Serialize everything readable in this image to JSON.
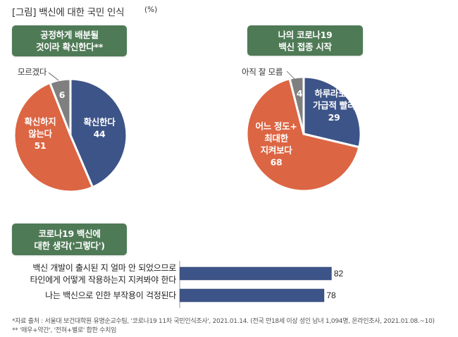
{
  "header": {
    "title": "[그림] 백신에 대한 국민 인식",
    "unit": "(%)"
  },
  "colors": {
    "blue": "#3d5488",
    "orange": "#dc6543",
    "gray": "#7f7f7f",
    "green": "#4f7a56"
  },
  "chart_data": [
    {
      "type": "pie",
      "title": [
        "공정하게 배분될",
        "것이라 확신한다**"
      ],
      "slices": [
        {
          "label": [
            "확신한다"
          ],
          "value": 44,
          "color": "#3d5488"
        },
        {
          "label": [
            "확신하지",
            "않는다"
          ],
          "value": 51,
          "color": "#dc6543"
        },
        {
          "label": [
            "모르겠다"
          ],
          "value": 6,
          "color": "#7f7f7f",
          "callout": true
        }
      ],
      "start": "top",
      "direction": "clockwise"
    },
    {
      "type": "pie",
      "title": [
        "나의 코로나19",
        "백신 접종 시작"
      ],
      "slices": [
        {
          "label": [
            "하루라도+",
            "가급적 빨리"
          ],
          "value": 29,
          "color": "#3d5488"
        },
        {
          "label": [
            "어느 정도+",
            "최대한",
            "지켜보다"
          ],
          "value": 68,
          "color": "#dc6543"
        },
        {
          "label": [
            "아직 잘 모름"
          ],
          "value": 4,
          "color": "#7f7f7f",
          "callout": true
        }
      ],
      "start": "top",
      "direction": "clockwise"
    },
    {
      "type": "bar",
      "orientation": "horizontal",
      "title": [
        "코로나19 백신에",
        "대한 생각('그렇다')"
      ],
      "categories": [
        [
          "백신 개발이 출시된 지 얼마 안 되었으므로",
          "타인에게 어떻게 작용하는지 지켜봐야 한다"
        ],
        [
          "나는 백신으로 인한 부작용이 걱정된다"
        ]
      ],
      "values": [
        82,
        78
      ],
      "xlim": [
        0,
        100
      ],
      "color": "#3d5488"
    }
  ],
  "footnotes": [
    "*자료 출처 : 서울대 보건대학원 유명순교수팀, '코로나19 11차 국민인식조사', 2021.01.14. (전국 만18세 이상 성인 남녀 1,094명, 온라인조사, 2021.01.08.~10)",
    "** '매우+약간', '전혀+별로' 합한 수치임"
  ]
}
